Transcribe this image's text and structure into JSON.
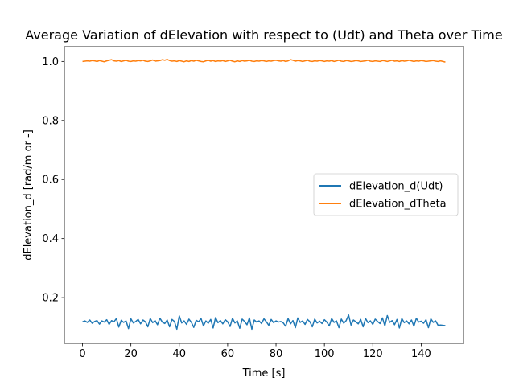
{
  "chart_data": {
    "type": "line",
    "title": "Average Variation of dElevation with respect to (Udt) and Theta over Time",
    "xlabel": "Time [s]",
    "ylabel": "dElevation_d [rad/m or -]",
    "xlim": [
      -7.5,
      157.5
    ],
    "ylim": [
      0.045,
      1.05
    ],
    "xticks": [
      0,
      20,
      40,
      60,
      80,
      100,
      120,
      140
    ],
    "yticks": [
      0.2,
      0.4,
      0.6,
      0.8,
      1.0
    ],
    "xtick_labels": [
      "0",
      "20",
      "40",
      "60",
      "80",
      "100",
      "120",
      "140"
    ],
    "ytick_labels": [
      "0.2",
      "0.4",
      "0.6",
      "0.8",
      "1.0"
    ],
    "grid": false,
    "legend_position": "center-right",
    "series": [
      {
        "name": "dElevation_d(Udt)",
        "color": "#1f77b4",
        "x": [
          0,
          1,
          2,
          3,
          4,
          5,
          6,
          7,
          8,
          9,
          10,
          11,
          12,
          13,
          14,
          15,
          16,
          17,
          18,
          19,
          20,
          21,
          22,
          23,
          24,
          25,
          26,
          27,
          28,
          29,
          30,
          31,
          32,
          33,
          34,
          35,
          36,
          37,
          38,
          39,
          40,
          41,
          42,
          43,
          44,
          45,
          46,
          47,
          48,
          49,
          50,
          51,
          52,
          53,
          54,
          55,
          56,
          57,
          58,
          59,
          60,
          61,
          62,
          63,
          64,
          65,
          66,
          67,
          68,
          69,
          70,
          71,
          72,
          73,
          74,
          75,
          76,
          77,
          78,
          79,
          80,
          81,
          82,
          83,
          84,
          85,
          86,
          87,
          88,
          89,
          90,
          91,
          92,
          93,
          94,
          95,
          96,
          97,
          98,
          99,
          100,
          101,
          102,
          103,
          104,
          105,
          106,
          107,
          108,
          109,
          110,
          111,
          112,
          113,
          114,
          115,
          116,
          117,
          118,
          119,
          120,
          121,
          122,
          123,
          124,
          125,
          126,
          127,
          128,
          129,
          130,
          131,
          132,
          133,
          134,
          135,
          136,
          137,
          138,
          139,
          140,
          141,
          142,
          143,
          144,
          145,
          146,
          147,
          148,
          149,
          150
        ],
        "values": [
          0.118,
          0.121,
          0.116,
          0.124,
          0.113,
          0.119,
          0.122,
          0.11,
          0.121,
          0.117,
          0.125,
          0.109,
          0.122,
          0.118,
          0.129,
          0.1,
          0.123,
          0.116,
          0.121,
          0.095,
          0.128,
          0.114,
          0.119,
          0.126,
          0.111,
          0.124,
          0.118,
          0.101,
          0.129,
          0.115,
          0.122,
          0.108,
          0.13,
          0.117,
          0.112,
          0.124,
          0.101,
          0.126,
          0.119,
          0.093,
          0.138,
          0.114,
          0.121,
          0.109,
          0.127,
          0.116,
          0.099,
          0.123,
          0.118,
          0.129,
          0.104,
          0.121,
          0.113,
          0.126,
          0.097,
          0.132,
          0.115,
          0.122,
          0.111,
          0.125,
          0.118,
          0.102,
          0.13,
          0.114,
          0.121,
          0.096,
          0.127,
          0.119,
          0.108,
          0.131,
          0.093,
          0.124,
          0.117,
          0.121,
          0.112,
          0.128,
          0.118,
          0.106,
          0.126,
          0.115,
          0.121,
          0.117,
          0.119,
          0.114,
          0.103,
          0.129,
          0.111,
          0.122,
          0.098,
          0.131,
          0.116,
          0.121,
          0.109,
          0.126,
          0.118,
          0.101,
          0.127,
          0.114,
          0.12,
          0.112,
          0.125,
          0.117,
          0.104,
          0.129,
          0.116,
          0.121,
          0.098,
          0.127,
          0.113,
          0.122,
          0.141,
          0.107,
          0.124,
          0.118,
          0.111,
          0.126,
          0.101,
          0.129,
          0.115,
          0.121,
          0.109,
          0.127,
          0.119,
          0.112,
          0.131,
          0.104,
          0.139,
          0.116,
          0.122,
          0.108,
          0.126,
          0.097,
          0.129,
          0.115,
          0.121,
          0.111,
          0.124,
          0.103,
          0.13,
          0.117,
          0.12,
          0.113,
          0.125,
          0.098,
          0.128,
          0.116,
          0.121,
          0.106,
          0.107,
          0.106,
          0.105
        ],
        "style": "line"
      },
      {
        "name": "dElevation_dTheta",
        "color": "#ff7f0e",
        "x": [
          0,
          1,
          2,
          3,
          4,
          5,
          6,
          7,
          8,
          9,
          10,
          11,
          12,
          13,
          14,
          15,
          16,
          17,
          18,
          19,
          20,
          21,
          22,
          23,
          24,
          25,
          26,
          27,
          28,
          29,
          30,
          31,
          32,
          33,
          34,
          35,
          36,
          37,
          38,
          39,
          40,
          41,
          42,
          43,
          44,
          45,
          46,
          47,
          48,
          49,
          50,
          51,
          52,
          53,
          54,
          55,
          56,
          57,
          58,
          59,
          60,
          61,
          62,
          63,
          64,
          65,
          66,
          67,
          68,
          69,
          70,
          71,
          72,
          73,
          74,
          75,
          76,
          77,
          78,
          79,
          80,
          81,
          82,
          83,
          84,
          85,
          86,
          87,
          88,
          89,
          90,
          91,
          92,
          93,
          94,
          95,
          96,
          97,
          98,
          99,
          100,
          101,
          102,
          103,
          104,
          105,
          106,
          107,
          108,
          109,
          110,
          111,
          112,
          113,
          114,
          115,
          116,
          117,
          118,
          119,
          120,
          121,
          122,
          123,
          124,
          125,
          126,
          127,
          128,
          129,
          130,
          131,
          132,
          133,
          134,
          135,
          136,
          137,
          138,
          139,
          140,
          141,
          142,
          143,
          144,
          145,
          146,
          147,
          148,
          149,
          150
        ],
        "values": [
          1.0,
          1.001,
          1.002,
          1.001,
          1.003,
          1.002,
          1.0,
          1.003,
          1.001,
          0.999,
          1.002,
          1.004,
          1.006,
          1.002,
          1.001,
          1.003,
          1.0,
          1.002,
          1.004,
          1.001,
          1.0,
          1.002,
          1.001,
          1.003,
          1.002,
          1.004,
          1.001,
          1.0,
          1.002,
          1.005,
          1.001,
          1.002,
          1.003,
          1.006,
          1.004,
          1.007,
          1.003,
          1.001,
          1.002,
          1.0,
          1.003,
          1.001,
          0.999,
          1.002,
          1.0,
          1.003,
          1.001,
          1.004,
          1.002,
          1.0,
          0.999,
          1.002,
          1.004,
          1.001,
          1.003,
          1.0,
          1.002,
          1.001,
          1.003,
          1.0,
          1.002,
          1.004,
          1.001,
          0.999,
          1.002,
          1.0,
          1.003,
          1.001,
          1.002,
          1.004,
          1.001,
          1.0,
          1.002,
          1.001,
          1.003,
          1.002,
          1.0,
          1.002,
          1.001,
          1.003,
          1.004,
          1.002,
          1.001,
          1.003,
          1.0,
          1.002,
          1.006,
          1.004,
          1.001,
          1.003,
          1.002,
          1.0,
          1.002,
          1.004,
          1.001,
          1.0,
          1.002,
          1.001,
          1.003,
          1.002,
          1.0,
          1.002,
          1.001,
          1.003,
          1.0,
          1.002,
          1.004,
          1.001,
          1.0,
          1.003,
          1.002,
          1.0,
          1.001,
          1.003,
          1.002,
          1.0,
          1.001,
          1.002,
          1.004,
          1.001,
          1.0,
          1.002,
          1.001,
          1.0,
          1.003,
          1.002,
          1.0,
          1.002,
          1.004,
          1.001,
          1.002,
          1.0,
          1.003,
          1.001,
          1.002,
          1.004,
          1.002,
          1.0,
          1.002,
          1.001,
          1.003,
          1.002,
          1.0,
          1.001,
          1.002,
          1.003,
          1.001,
          1.0,
          1.002,
          1.0,
          0.998
        ],
        "style": "line"
      }
    ]
  }
}
